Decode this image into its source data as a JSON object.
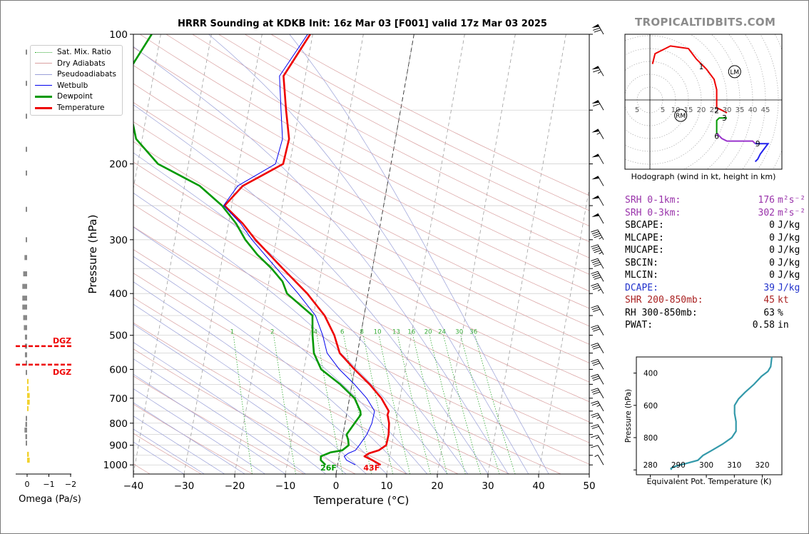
{
  "title": "HRRR Sounding at KDKB Init: 16z Mar 03 [F001] valid 17z Mar 03 2025",
  "brand": "TROPICALTIDBITS.COM",
  "chart_data": [
    {
      "type": "line",
      "name": "skewt",
      "xlabel": "Temperature (°C)",
      "ylabel": "Pressure (hPa)",
      "xlim": [
        -40,
        50
      ],
      "ylim": [
        1050,
        100
      ],
      "xticks": [
        "−40",
        "−30",
        "−20",
        "−10",
        "0",
        "10",
        "20",
        "30",
        "40",
        "50"
      ],
      "yticks": [
        "100",
        "200",
        "300",
        "400",
        "500",
        "600",
        "700",
        "800",
        "900",
        "1000"
      ],
      "legend_position": "top-left",
      "legend": [
        "Sat. Mix. Ratio",
        "Dry Adiabats",
        "Pseudoadiabats",
        "Wetbulb",
        "Dewpoint",
        "Temperature"
      ],
      "mixing_ratio_labels": [
        "1",
        "2",
        "4",
        "6",
        "8",
        "10",
        "13",
        "16",
        "20",
        "24",
        "30",
        "36"
      ],
      "series": [
        {
          "name": "Temperature",
          "color": "#ee0000",
          "points": [
            [
              1000,
              8.5
            ],
            [
              975,
              6.7
            ],
            [
              955,
              5.0
            ],
            [
              940,
              5.8
            ],
            [
              925,
              7.6
            ],
            [
              900,
              8.9
            ],
            [
              850,
              9.0
            ],
            [
              800,
              8.7
            ],
            [
              765,
              8.1
            ],
            [
              750,
              8.2
            ],
            [
              700,
              6.3
            ],
            [
              650,
              3.5
            ],
            [
              600,
              0.0
            ],
            [
              550,
              -3.5
            ],
            [
              500,
              -5.2
            ],
            [
              450,
              -7.8
            ],
            [
              400,
              -12.0
            ],
            [
              350,
              -17.7
            ],
            [
              300,
              -24.1
            ],
            [
              275,
              -27.2
            ],
            [
              250,
              -31.4
            ],
            [
              225,
              -28.5
            ],
            [
              200,
              -21.3
            ],
            [
              175,
              -21.0
            ],
            [
              150,
              -22.6
            ],
            [
              125,
              -24.3
            ],
            [
              100,
              -20.5
            ]
          ]
        },
        {
          "name": "Dewpoint",
          "color": "#009900",
          "points": [
            [
              1000,
              -2.4
            ],
            [
              975,
              -3.5
            ],
            [
              955,
              -3.6
            ],
            [
              935,
              -1.8
            ],
            [
              925,
              0.4
            ],
            [
              900,
              1.5
            ],
            [
              875,
              1.2
            ],
            [
              850,
              0.7
            ],
            [
              800,
              1.9
            ],
            [
              765,
              2.8
            ],
            [
              750,
              2.6
            ],
            [
              700,
              1.0
            ],
            [
              650,
              -2.3
            ],
            [
              600,
              -6.6
            ],
            [
              550,
              -8.6
            ],
            [
              500,
              -9.5
            ],
            [
              450,
              -10.2
            ],
            [
              400,
              -16.0
            ],
            [
              375,
              -17.3
            ],
            [
              350,
              -19.9
            ],
            [
              325,
              -23.2
            ],
            [
              300,
              -26.1
            ],
            [
              275,
              -28.5
            ],
            [
              250,
              -31.9
            ],
            [
              225,
              -37.0
            ],
            [
              200,
              -46.0
            ],
            [
              175,
              -51.2
            ],
            [
              150,
              -53.4
            ],
            [
              125,
              -55.5
            ],
            [
              100,
              -51.8
            ]
          ]
        },
        {
          "name": "Wetbulb",
          "color": "#0000ee",
          "points": [
            [
              1000,
              3.5
            ],
            [
              975,
              1.6
            ],
            [
              955,
              1.0
            ],
            [
              940,
              1.7
            ],
            [
              925,
              3.0
            ],
            [
              900,
              3.6
            ],
            [
              850,
              4.7
            ],
            [
              800,
              5.3
            ],
            [
              750,
              5.4
            ],
            [
              700,
              3.4
            ],
            [
              650,
              0.5
            ],
            [
              600,
              -3.0
            ],
            [
              550,
              -6.0
            ],
            [
              500,
              -7.5
            ],
            [
              450,
              -9.6
            ],
            [
              400,
              -13.8
            ],
            [
              350,
              -18.9
            ],
            [
              300,
              -24.8
            ],
            [
              275,
              -27.6
            ],
            [
              250,
              -31.6
            ],
            [
              225,
              -29.5
            ],
            [
              200,
              -22.8
            ],
            [
              175,
              -22.3
            ],
            [
              150,
              -23.6
            ],
            [
              125,
              -25.1
            ],
            [
              100,
              -21.0
            ]
          ]
        }
      ],
      "annotations": [
        {
          "text": "26F",
          "color": "#009900",
          "pressure": 1000,
          "temp": -2.0
        },
        {
          "text": "43F",
          "color": "#ee0000",
          "pressure": 1000,
          "temp": 6.5
        }
      ],
      "wind_barbs": [
        {
          "p": 100,
          "u": 0,
          "v": 1,
          "speed": 70
        },
        {
          "p": 125,
          "u": 0,
          "v": 1,
          "speed": 65
        },
        {
          "p": 150,
          "u": 0,
          "v": 1,
          "speed": 60
        },
        {
          "p": 175,
          "u": 0,
          "v": 1,
          "speed": 55
        },
        {
          "p": 200,
          "u": 0,
          "v": 1,
          "speed": 50
        },
        {
          "p": 225,
          "u": 0,
          "v": 1,
          "speed": 50
        },
        {
          "p": 250,
          "u": 0,
          "v": 1,
          "speed": 50
        },
        {
          "p": 275,
          "u": 0,
          "v": 1,
          "speed": 50
        },
        {
          "p": 300,
          "u": 0,
          "v": 1,
          "speed": 45
        },
        {
          "p": 325,
          "u": 0,
          "v": 1,
          "speed": 45
        },
        {
          "p": 350,
          "u": 0,
          "v": 1,
          "speed": 40
        },
        {
          "p": 375,
          "u": 0,
          "v": 1,
          "speed": 40
        },
        {
          "p": 400,
          "u": 0,
          "v": 1,
          "speed": 35
        },
        {
          "p": 450,
          "u": 0,
          "v": 1,
          "speed": 30
        },
        {
          "p": 500,
          "u": 0,
          "v": 1,
          "speed": 30
        },
        {
          "p": 550,
          "u": 0,
          "v": 1,
          "speed": 30
        },
        {
          "p": 600,
          "u": 0,
          "v": 1,
          "speed": 30
        },
        {
          "p": 650,
          "u": 0,
          "v": 1,
          "speed": 30
        },
        {
          "p": 700,
          "u": 0,
          "v": 1,
          "speed": 30
        },
        {
          "p": 750,
          "u": 0,
          "v": 1,
          "speed": 25
        },
        {
          "p": 800,
          "u": 0,
          "v": 1,
          "speed": 25
        },
        {
          "p": 850,
          "u": 0,
          "v": 1,
          "speed": 20
        },
        {
          "p": 900,
          "u": 0,
          "v": 1,
          "speed": 15
        },
        {
          "p": 950,
          "u": 0,
          "v": 1,
          "speed": 10
        },
        {
          "p": 1000,
          "u": 0,
          "v": 1,
          "speed": 5
        }
      ]
    },
    {
      "type": "bar",
      "name": "omega",
      "xlabel": "Omega (Pa/s)",
      "xticks": [
        "0",
        "−1",
        "−2"
      ],
      "xlim": [
        0.0,
        -2.0
      ],
      "dgz_label": "DGZ",
      "dgz_pressures": [
        530,
        585
      ],
      "bars": [
        {
          "p": 110,
          "omega": -0.05
        },
        {
          "p": 130,
          "omega": -0.05
        },
        {
          "p": 155,
          "omega": -0.05
        },
        {
          "p": 185,
          "omega": -0.05
        },
        {
          "p": 210,
          "omega": -0.05
        },
        {
          "p": 255,
          "omega": -0.05
        },
        {
          "p": 300,
          "omega": -0.05
        },
        {
          "p": 330,
          "omega": -0.12
        },
        {
          "p": 360,
          "omega": -0.18
        },
        {
          "p": 385,
          "omega": -0.22
        },
        {
          "p": 410,
          "omega": -0.22
        },
        {
          "p": 430,
          "omega": -0.22
        },
        {
          "p": 455,
          "omega": -0.18
        },
        {
          "p": 480,
          "omega": -0.15
        },
        {
          "p": 505,
          "omega": -0.1
        },
        {
          "p": 530,
          "omega": -0.1
        },
        {
          "p": 555,
          "omega": -0.1
        },
        {
          "p": 580,
          "omega": -0.05
        },
        {
          "p": 610,
          "omega": -0.05
        },
        {
          "p": 640,
          "omega": 0.05
        },
        {
          "p": 665,
          "omega": 0.05
        },
        {
          "p": 690,
          "omega": 0.12
        },
        {
          "p": 715,
          "omega": 0.12
        },
        {
          "p": 740,
          "omega": 0.06
        },
        {
          "p": 780,
          "omega": -0.05
        },
        {
          "p": 805,
          "omega": -0.08
        },
        {
          "p": 830,
          "omega": -0.12
        },
        {
          "p": 860,
          "omega": -0.08
        },
        {
          "p": 890,
          "omega": -0.05
        },
        {
          "p": 945,
          "omega": 0.08
        },
        {
          "p": 975,
          "omega": 0.12
        }
      ]
    },
    {
      "type": "line",
      "name": "hodograph",
      "xlabel": "Hodograph (wind in kt, height in km)",
      "ring_labels": [
        "5",
        "5",
        "10",
        "15",
        "20",
        "25",
        "30",
        "35",
        "40",
        "45"
      ],
      "storm_motion": [
        {
          "label": "LM",
          "u": 33,
          "v": 11
        },
        {
          "label": "RM",
          "u": 12,
          "v": -6
        }
      ],
      "height_labels": [
        {
          "text": "1",
          "u": 20,
          "v": 13
        },
        {
          "text": "2",
          "u": 26,
          "v": -4
        },
        {
          "text": "3",
          "u": 29,
          "v": -7
        },
        {
          "text": "6",
          "u": 26,
          "v": -14
        },
        {
          "text": "9",
          "u": 42,
          "v": -17
        }
      ],
      "segments": [
        {
          "color": "#ee0000",
          "points": [
            [
              1,
              14
            ],
            [
              2,
              18
            ],
            [
              4,
              19
            ],
            [
              8,
              21
            ],
            [
              15,
              20
            ],
            [
              18,
              16
            ],
            [
              22,
              12
            ],
            [
              25,
              8
            ],
            [
              26,
              4
            ],
            [
              26,
              0
            ],
            [
              26,
              -3
            ]
          ]
        },
        {
          "color": "#ee0000",
          "points": [
            [
              26,
              -3
            ],
            [
              28,
              -4
            ],
            [
              30,
              -5
            ]
          ]
        },
        {
          "color": "#009900",
          "points": [
            [
              30,
              -7
            ],
            [
              27,
              -7
            ],
            [
              26,
              -8
            ],
            [
              26,
              -11
            ],
            [
              26,
              -13
            ]
          ]
        },
        {
          "color": "#9933cc",
          "points": [
            [
              26,
              -13
            ],
            [
              28,
              -15
            ],
            [
              30,
              -16
            ],
            [
              35,
              -16
            ],
            [
              40,
              -16
            ],
            [
              41,
              -17
            ]
          ]
        },
        {
          "color": "#2222ee",
          "points": [
            [
              41,
              -17
            ],
            [
              44,
              -17
            ],
            [
              46,
              -17
            ],
            [
              43,
              -21
            ],
            [
              42,
              -23
            ],
            [
              41,
              -24
            ]
          ]
        }
      ]
    },
    {
      "type": "line",
      "name": "theta-e",
      "xlabel": "Equivalent Pot. Temperature (K)",
      "ylabel": "Pressure (hPa)",
      "xticks": [
        "280",
        "290",
        "300",
        "310",
        "320"
      ],
      "yticks": [
        "400",
        "600",
        "800"
      ],
      "color": "#3399aa",
      "points": [
        [
          1000,
          287.5
        ],
        [
          990,
          287.4
        ],
        [
          975,
          289.3
        ],
        [
          960,
          292.8
        ],
        [
          940,
          297.0
        ],
        [
          910,
          298.8
        ],
        [
          880,
          301.9
        ],
        [
          840,
          305.8
        ],
        [
          800,
          309.1
        ],
        [
          760,
          310.6
        ],
        [
          700,
          310.6
        ],
        [
          650,
          310.1
        ],
        [
          600,
          310.1
        ],
        [
          560,
          311.5
        ],
        [
          520,
          313.8
        ],
        [
          470,
          317.0
        ],
        [
          420,
          319.7
        ],
        [
          390,
          322.0
        ],
        [
          360,
          323.0
        ],
        [
          330,
          323.2
        ],
        [
          300,
          323.4
        ]
      ]
    }
  ],
  "stats": [
    {
      "label": "SRH 0-1km:",
      "value": "176",
      "unit": "m²s⁻²",
      "color": "#9933aa"
    },
    {
      "label": "SRH 0-3km:",
      "value": "302",
      "unit": "m²s⁻²",
      "color": "#9933aa"
    },
    {
      "label": "SBCAPE:",
      "value": "0",
      "unit": "J/kg",
      "color": "#000000"
    },
    {
      "label": "MLCAPE:",
      "value": "0",
      "unit": "J/kg",
      "color": "#000000"
    },
    {
      "label": "MUCAPE:",
      "value": "0",
      "unit": "J/kg",
      "color": "#000000"
    },
    {
      "label": "SBCIN:",
      "value": "0",
      "unit": "J/kg",
      "color": "#000000"
    },
    {
      "label": "MLCIN:",
      "value": "0",
      "unit": "J/kg",
      "color": "#000000"
    },
    {
      "label": "DCAPE:",
      "value": "39",
      "unit": "J/kg",
      "color": "#2233cc"
    },
    {
      "label": "SHR 200-850mb:",
      "value": "45",
      "unit": "kt",
      "color": "#aa2222"
    },
    {
      "label": "RH 300-850mb:",
      "value": "63",
      "unit": "%",
      "color": "#000000"
    },
    {
      "label": "PWAT:",
      "value": "0.58",
      "unit": "in",
      "color": "#000000"
    }
  ]
}
